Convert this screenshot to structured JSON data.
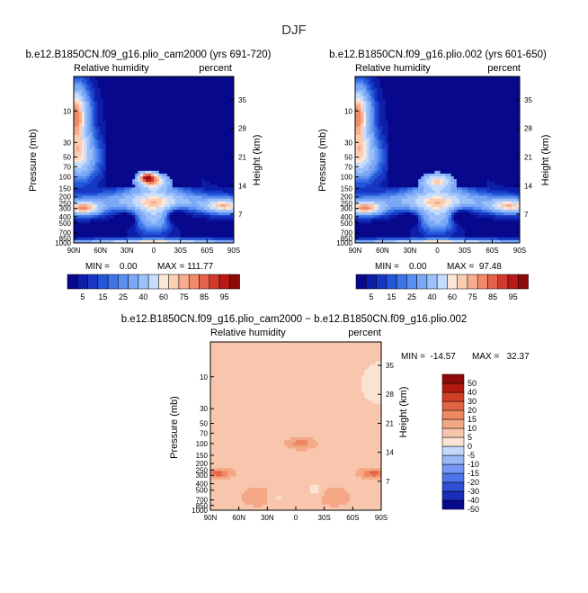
{
  "page_title": "DJF",
  "colors": {
    "rh_palette": [
      "#08088c",
      "#0d1ea8",
      "#1737c4",
      "#2456d8",
      "#3c73e6",
      "#5a8ff0",
      "#7ba8f6",
      "#9cc0fa",
      "#c6dcfd",
      "#fbe6d8",
      "#fbcdb2",
      "#f7ad8d",
      "#f08a68",
      "#e5624a",
      "#d23a2c",
      "#b91816",
      "#8e0a08"
    ],
    "diff_palette": [
      "#08088c",
      "#1a2cb8",
      "#2e4fd6",
      "#4d74ea",
      "#7397f2",
      "#9ab8f7",
      "#c4d8fc",
      "#fbe3d3",
      "#f8c6ad",
      "#f4a886",
      "#ee8862",
      "#e36442",
      "#d13f28",
      "#b51a12",
      "#8e0a08"
    ]
  },
  "chart_data": [
    {
      "type": "heatmap",
      "title": "b.e12.B1850CN.f09_g16.plio_cam2000 (yrs 691-720)",
      "left_label": "Relative humidity",
      "right_label": "percent",
      "ylabel": "Pressure (mb)",
      "ylabel_right": "Height (km)",
      "x_ticks": [
        "90N",
        "60N",
        "30N",
        "0",
        "30S",
        "60S",
        "90S"
      ],
      "y_ticks": [
        "10",
        "30",
        "50",
        "70",
        "100",
        "150",
        "200",
        "250",
        "300",
        "400",
        "500",
        "700",
        "850",
        "1000"
      ],
      "height_ticks": [
        "35",
        "28",
        "21",
        "14",
        "7"
      ],
      "stats": {
        "min": "MIN =    0.00",
        "max": "MAX = 111.77"
      },
      "legend_levels": [
        "5",
        "15",
        "25",
        "40",
        "60",
        "75",
        "85",
        "95"
      ],
      "variant": "a"
    },
    {
      "type": "heatmap",
      "title": "b.e12.B1850CN.f09_g16.plio.002 (yrs 601-650)",
      "left_label": "Relative humidity",
      "right_label": "percent",
      "ylabel": "Pressure (mb)",
      "ylabel_right": "Height (km)",
      "x_ticks": [
        "90N",
        "60N",
        "30N",
        "0",
        "30S",
        "60S",
        "90S"
      ],
      "y_ticks": [
        "10",
        "30",
        "50",
        "70",
        "100",
        "150",
        "200",
        "250",
        "300",
        "400",
        "500",
        "700",
        "850",
        "1000"
      ],
      "height_ticks": [
        "35",
        "28",
        "21",
        "14",
        "7"
      ],
      "stats": {
        "min": "MIN =    0.00",
        "max": "MAX =  97.48"
      },
      "legend_levels": [
        "5",
        "15",
        "25",
        "40",
        "60",
        "75",
        "85",
        "95"
      ],
      "variant": "b"
    },
    {
      "type": "heatmap",
      "title": "b.e12.B1850CN.f09_g16.plio_cam2000 − b.e12.B1850CN.f09_g16.plio.002",
      "left_label": "Relative humidity",
      "right_label": "percent",
      "ylabel": "Pressure (mb)",
      "ylabel_right": "Height (km)",
      "x_ticks": [
        "90N",
        "60N",
        "30N",
        "0",
        "30S",
        "60S",
        "90S"
      ],
      "y_ticks": [
        "10",
        "30",
        "50",
        "70",
        "100",
        "150",
        "200",
        "250",
        "300",
        "400",
        "500",
        "700",
        "850",
        "1000"
      ],
      "height_ticks": [
        "35",
        "28",
        "21",
        "14",
        "7"
      ],
      "stats": {
        "min": "MIN =  -14.57",
        "max": "MAX =   32.37"
      },
      "legend_levels": [
        "50",
        "40",
        "30",
        "20",
        "15",
        "10",
        "5",
        "0",
        "-5",
        "-10",
        "-15",
        "-20",
        "-30",
        "-40",
        "-50"
      ],
      "variant": "diff"
    }
  ]
}
